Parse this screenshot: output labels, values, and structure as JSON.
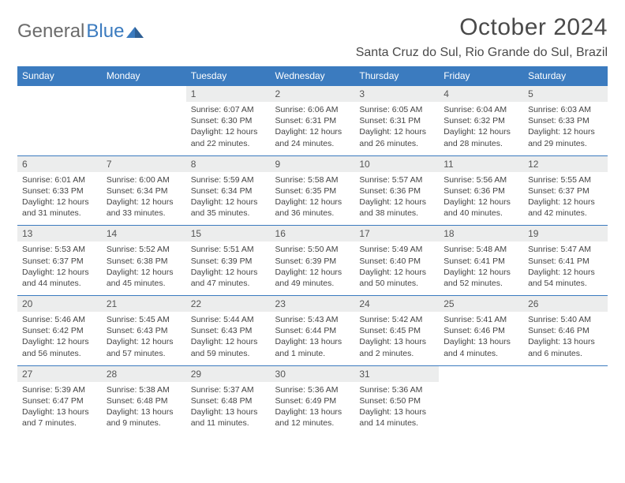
{
  "brand": {
    "name_a": "General",
    "name_b": "Blue"
  },
  "title": "October 2024",
  "location": "Santa Cruz do Sul, Rio Grande do Sul, Brazil",
  "header_color": "#3b7bbf",
  "daynum_bg": "#eceded",
  "dow": [
    "Sunday",
    "Monday",
    "Tuesday",
    "Wednesday",
    "Thursday",
    "Friday",
    "Saturday"
  ],
  "weeks": [
    [
      null,
      null,
      {
        "n": "1",
        "sr": "Sunrise: 6:07 AM",
        "ss": "Sunset: 6:30 PM",
        "dl": "Daylight: 12 hours and 22 minutes."
      },
      {
        "n": "2",
        "sr": "Sunrise: 6:06 AM",
        "ss": "Sunset: 6:31 PM",
        "dl": "Daylight: 12 hours and 24 minutes."
      },
      {
        "n": "3",
        "sr": "Sunrise: 6:05 AM",
        "ss": "Sunset: 6:31 PM",
        "dl": "Daylight: 12 hours and 26 minutes."
      },
      {
        "n": "4",
        "sr": "Sunrise: 6:04 AM",
        "ss": "Sunset: 6:32 PM",
        "dl": "Daylight: 12 hours and 28 minutes."
      },
      {
        "n": "5",
        "sr": "Sunrise: 6:03 AM",
        "ss": "Sunset: 6:33 PM",
        "dl": "Daylight: 12 hours and 29 minutes."
      }
    ],
    [
      {
        "n": "6",
        "sr": "Sunrise: 6:01 AM",
        "ss": "Sunset: 6:33 PM",
        "dl": "Daylight: 12 hours and 31 minutes."
      },
      {
        "n": "7",
        "sr": "Sunrise: 6:00 AM",
        "ss": "Sunset: 6:34 PM",
        "dl": "Daylight: 12 hours and 33 minutes."
      },
      {
        "n": "8",
        "sr": "Sunrise: 5:59 AM",
        "ss": "Sunset: 6:34 PM",
        "dl": "Daylight: 12 hours and 35 minutes."
      },
      {
        "n": "9",
        "sr": "Sunrise: 5:58 AM",
        "ss": "Sunset: 6:35 PM",
        "dl": "Daylight: 12 hours and 36 minutes."
      },
      {
        "n": "10",
        "sr": "Sunrise: 5:57 AM",
        "ss": "Sunset: 6:36 PM",
        "dl": "Daylight: 12 hours and 38 minutes."
      },
      {
        "n": "11",
        "sr": "Sunrise: 5:56 AM",
        "ss": "Sunset: 6:36 PM",
        "dl": "Daylight: 12 hours and 40 minutes."
      },
      {
        "n": "12",
        "sr": "Sunrise: 5:55 AM",
        "ss": "Sunset: 6:37 PM",
        "dl": "Daylight: 12 hours and 42 minutes."
      }
    ],
    [
      {
        "n": "13",
        "sr": "Sunrise: 5:53 AM",
        "ss": "Sunset: 6:37 PM",
        "dl": "Daylight: 12 hours and 44 minutes."
      },
      {
        "n": "14",
        "sr": "Sunrise: 5:52 AM",
        "ss": "Sunset: 6:38 PM",
        "dl": "Daylight: 12 hours and 45 minutes."
      },
      {
        "n": "15",
        "sr": "Sunrise: 5:51 AM",
        "ss": "Sunset: 6:39 PM",
        "dl": "Daylight: 12 hours and 47 minutes."
      },
      {
        "n": "16",
        "sr": "Sunrise: 5:50 AM",
        "ss": "Sunset: 6:39 PM",
        "dl": "Daylight: 12 hours and 49 minutes."
      },
      {
        "n": "17",
        "sr": "Sunrise: 5:49 AM",
        "ss": "Sunset: 6:40 PM",
        "dl": "Daylight: 12 hours and 50 minutes."
      },
      {
        "n": "18",
        "sr": "Sunrise: 5:48 AM",
        "ss": "Sunset: 6:41 PM",
        "dl": "Daylight: 12 hours and 52 minutes."
      },
      {
        "n": "19",
        "sr": "Sunrise: 5:47 AM",
        "ss": "Sunset: 6:41 PM",
        "dl": "Daylight: 12 hours and 54 minutes."
      }
    ],
    [
      {
        "n": "20",
        "sr": "Sunrise: 5:46 AM",
        "ss": "Sunset: 6:42 PM",
        "dl": "Daylight: 12 hours and 56 minutes."
      },
      {
        "n": "21",
        "sr": "Sunrise: 5:45 AM",
        "ss": "Sunset: 6:43 PM",
        "dl": "Daylight: 12 hours and 57 minutes."
      },
      {
        "n": "22",
        "sr": "Sunrise: 5:44 AM",
        "ss": "Sunset: 6:43 PM",
        "dl": "Daylight: 12 hours and 59 minutes."
      },
      {
        "n": "23",
        "sr": "Sunrise: 5:43 AM",
        "ss": "Sunset: 6:44 PM",
        "dl": "Daylight: 13 hours and 1 minute."
      },
      {
        "n": "24",
        "sr": "Sunrise: 5:42 AM",
        "ss": "Sunset: 6:45 PM",
        "dl": "Daylight: 13 hours and 2 minutes."
      },
      {
        "n": "25",
        "sr": "Sunrise: 5:41 AM",
        "ss": "Sunset: 6:46 PM",
        "dl": "Daylight: 13 hours and 4 minutes."
      },
      {
        "n": "26",
        "sr": "Sunrise: 5:40 AM",
        "ss": "Sunset: 6:46 PM",
        "dl": "Daylight: 13 hours and 6 minutes."
      }
    ],
    [
      {
        "n": "27",
        "sr": "Sunrise: 5:39 AM",
        "ss": "Sunset: 6:47 PM",
        "dl": "Daylight: 13 hours and 7 minutes."
      },
      {
        "n": "28",
        "sr": "Sunrise: 5:38 AM",
        "ss": "Sunset: 6:48 PM",
        "dl": "Daylight: 13 hours and 9 minutes."
      },
      {
        "n": "29",
        "sr": "Sunrise: 5:37 AM",
        "ss": "Sunset: 6:48 PM",
        "dl": "Daylight: 13 hours and 11 minutes."
      },
      {
        "n": "30",
        "sr": "Sunrise: 5:36 AM",
        "ss": "Sunset: 6:49 PM",
        "dl": "Daylight: 13 hours and 12 minutes."
      },
      {
        "n": "31",
        "sr": "Sunrise: 5:36 AM",
        "ss": "Sunset: 6:50 PM",
        "dl": "Daylight: 13 hours and 14 minutes."
      },
      null,
      null
    ]
  ]
}
